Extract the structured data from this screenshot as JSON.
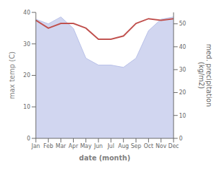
{
  "chart_data": {
    "type": "line",
    "xlabel": "date (month)",
    "ylabel": "max temp (C)",
    "y2label": "med. precipitation\n(kg/m2)",
    "categories": [
      "Jan",
      "Feb",
      "Mar",
      "Apr",
      "May",
      "Jun",
      "Jul",
      "Aug",
      "Sep",
      "Oct",
      "Nov",
      "Dec"
    ],
    "series": [
      {
        "type": "area",
        "axis": "y2",
        "color": "#b8c0e8",
        "values": [
          52,
          50,
          53,
          48,
          35,
          32,
          32,
          31,
          35,
          47,
          52,
          53
        ]
      },
      {
        "type": "line",
        "axis": "y",
        "color": "#c0504d",
        "values": [
          37.5,
          35.0,
          36.5,
          36.5,
          35.0,
          31.5,
          31.5,
          32.5,
          36.5,
          38.0,
          37.5,
          38.0
        ]
      }
    ],
    "ylim": [
      0,
      40
    ],
    "yticks": [
      0,
      10,
      20,
      30,
      40
    ],
    "y2lim": [
      0,
      55
    ],
    "y2ticks": [
      0,
      10,
      20,
      30,
      40,
      50
    ],
    "grid": false
  }
}
